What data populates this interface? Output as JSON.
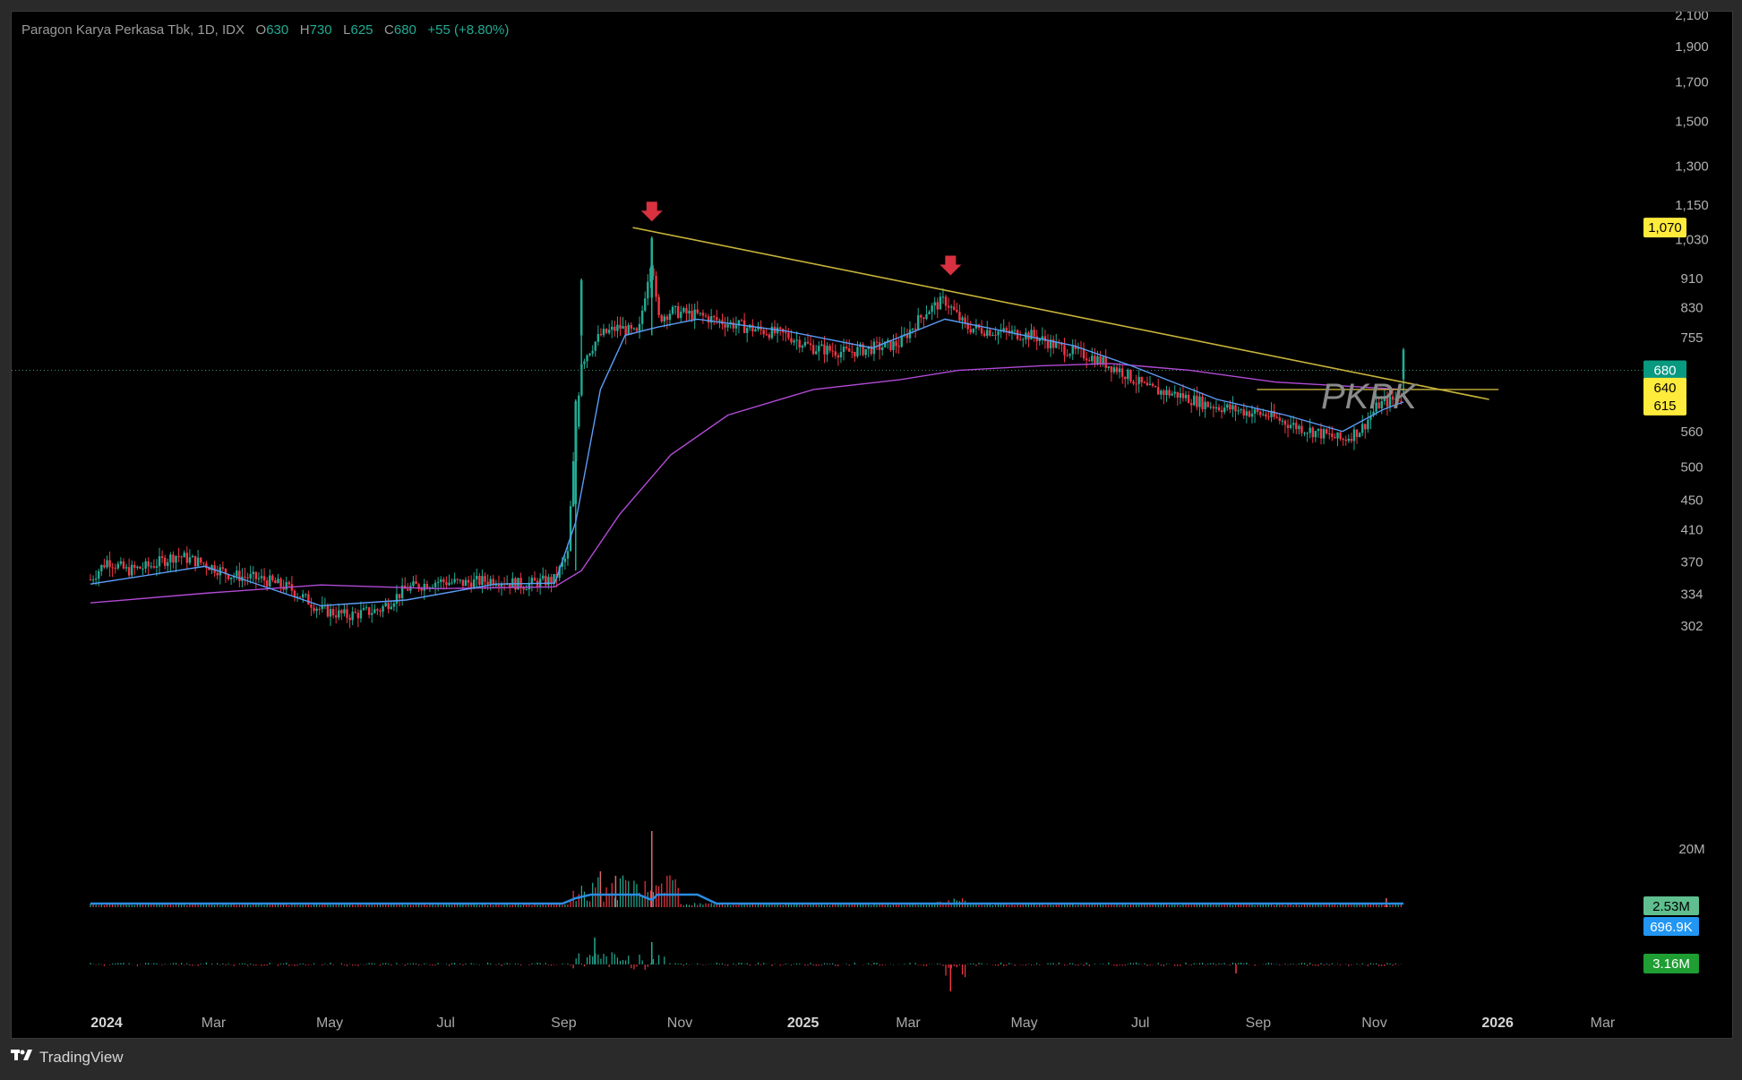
{
  "legend": {
    "name": "Paragon Karya Perkasa Tbk, 1D, IDX",
    "open_label": "O",
    "open": "630",
    "high_label": "H",
    "high": "730",
    "low_label": "L",
    "low": "625",
    "close_label": "C",
    "close": "680",
    "change": "+55 (+8.80%)"
  },
  "watermark": "PKPK",
  "footer": {
    "brand": "TradingView"
  },
  "colors": {
    "up": "#22ab94",
    "down": "#f23645",
    "ema_fast": "#5b9cf6",
    "ma_slow": "#b24ad6",
    "trendline": "#c7b33a",
    "arrow": "#d9313f",
    "price_tag": "#089981",
    "yellow_tag": "#ffeb3b",
    "vol_tag": "#5fbf8f",
    "vol_ma_tag": "#2196f3",
    "bottom_tag": "#1e9e33"
  },
  "chart_data": {
    "type": "candlestick",
    "scale": "log",
    "x_ticks": [
      "2024",
      "Mar",
      "May",
      "Jul",
      "Sep",
      "Nov",
      "2025",
      "Mar",
      "May",
      "Jul",
      "Sep",
      "Nov",
      "2026",
      "Mar"
    ],
    "y_ticks": [
      "2,100",
      "1,900",
      "1,700",
      "1,500",
      "1,300",
      "1,150",
      "1,030",
      "910",
      "830",
      "755",
      "560",
      "500",
      "450",
      "410",
      "370",
      "334",
      "302"
    ],
    "price_tags": [
      {
        "label": "1,070",
        "style": "yellow"
      },
      {
        "label": "680",
        "style": "green"
      },
      {
        "label": "640",
        "style": "yellow"
      },
      {
        "label": "615",
        "style": "yellow"
      }
    ],
    "volume_axis_label": "20M",
    "volume_tags": [
      {
        "label": "2.53M",
        "style": "green"
      },
      {
        "label": "696.9K",
        "style": "blue"
      }
    ],
    "bottom_tag": {
      "label": "3.16M"
    },
    "price_path": [
      [
        "2024-01-01",
        350
      ],
      [
        "2024-01-10",
        372
      ],
      [
        "2024-01-20",
        360
      ],
      [
        "2024-02-01",
        365
      ],
      [
        "2024-02-15",
        378
      ],
      [
        "2024-03-01",
        368
      ],
      [
        "2024-03-15",
        355
      ],
      [
        "2024-04-01",
        350
      ],
      [
        "2024-04-15",
        340
      ],
      [
        "2024-05-01",
        318
      ],
      [
        "2024-05-15",
        312
      ],
      [
        "2024-06-01",
        318
      ],
      [
        "2024-06-15",
        340
      ],
      [
        "2024-07-01",
        348
      ],
      [
        "2024-07-15",
        346
      ],
      [
        "2024-08-01",
        350
      ],
      [
        "2024-08-15",
        344
      ],
      [
        "2024-09-01",
        350
      ],
      [
        "2024-09-08",
        380
      ],
      [
        "2024-09-12",
        560
      ],
      [
        "2024-09-15",
        700
      ],
      [
        "2024-09-25",
        760
      ],
      [
        "2024-10-05",
        780
      ],
      [
        "2024-10-15",
        760
      ],
      [
        "2024-10-22",
        980
      ],
      [
        "2024-10-25",
        800
      ],
      [
        "2024-11-01",
        820
      ],
      [
        "2024-11-15",
        810
      ],
      [
        "2024-12-01",
        790
      ],
      [
        "2024-12-15",
        775
      ],
      [
        "2025-01-01",
        760
      ],
      [
        "2025-01-15",
        730
      ],
      [
        "2025-02-01",
        720
      ],
      [
        "2025-02-15",
        730
      ],
      [
        "2025-03-01",
        740
      ],
      [
        "2025-03-15",
        820
      ],
      [
        "2025-03-25",
        850
      ],
      [
        "2025-04-05",
        780
      ],
      [
        "2025-04-20",
        770
      ],
      [
        "2025-05-10",
        760
      ],
      [
        "2025-05-25",
        730
      ],
      [
        "2025-06-10",
        710
      ],
      [
        "2025-06-25",
        680
      ],
      [
        "2025-07-10",
        640
      ],
      [
        "2025-07-25",
        630
      ],
      [
        "2025-08-10",
        610
      ],
      [
        "2025-08-25",
        600
      ],
      [
        "2025-09-10",
        590
      ],
      [
        "2025-09-25",
        570
      ],
      [
        "2025-10-10",
        555
      ],
      [
        "2025-10-20",
        545
      ],
      [
        "2025-10-30",
        565
      ],
      [
        "2025-11-08",
        610
      ],
      [
        "2025-11-15",
        618
      ],
      [
        "2025-11-20",
        625
      ],
      [
        "2025-11-21",
        680
      ]
    ],
    "ema_fast_path": [
      [
        "2024-01-01",
        345
      ],
      [
        "2024-03-01",
        365
      ],
      [
        "2024-05-01",
        322
      ],
      [
        "2024-06-15",
        328
      ],
      [
        "2024-08-01",
        345
      ],
      [
        "2024-09-01",
        346
      ],
      [
        "2024-09-12",
        420
      ],
      [
        "2024-09-25",
        640
      ],
      [
        "2024-10-08",
        760
      ],
      [
        "2024-10-25",
        780
      ],
      [
        "2024-11-15",
        800
      ],
      [
        "2025-01-01",
        770
      ],
      [
        "2025-02-15",
        730
      ],
      [
        "2025-03-25",
        800
      ],
      [
        "2025-04-20",
        775
      ],
      [
        "2025-06-01",
        735
      ],
      [
        "2025-07-01",
        690
      ],
      [
        "2025-08-15",
        620
      ],
      [
        "2025-09-20",
        590
      ],
      [
        "2025-10-20",
        560
      ],
      [
        "2025-11-10",
        600
      ],
      [
        "2025-11-21",
        615
      ]
    ],
    "ma_slow_path": [
      [
        "2024-01-01",
        325
      ],
      [
        "2024-03-01",
        335
      ],
      [
        "2024-05-01",
        344
      ],
      [
        "2024-07-01",
        340
      ],
      [
        "2024-09-01",
        342
      ],
      [
        "2024-09-15",
        360
      ],
      [
        "2024-10-05",
        430
      ],
      [
        "2024-11-01",
        520
      ],
      [
        "2024-12-01",
        590
      ],
      [
        "2025-01-15",
        640
      ],
      [
        "2025-03-01",
        660
      ],
      [
        "2025-04-01",
        680
      ],
      [
        "2025-05-15",
        690
      ],
      [
        "2025-06-20",
        695
      ],
      [
        "2025-08-01",
        680
      ],
      [
        "2025-09-15",
        655
      ],
      [
        "2025-11-21",
        640
      ]
    ],
    "trendline": [
      [
        "2024-10-12",
        1070
      ],
      [
        "2026-01-05",
        620
      ]
    ],
    "horizontal_level": [
      [
        "2025-09-05",
        640
      ],
      [
        "2026-01-10",
        640
      ]
    ],
    "arrows": [
      [
        "2024-10-22",
        1110
      ],
      [
        "2025-03-28",
        935
      ]
    ]
  }
}
